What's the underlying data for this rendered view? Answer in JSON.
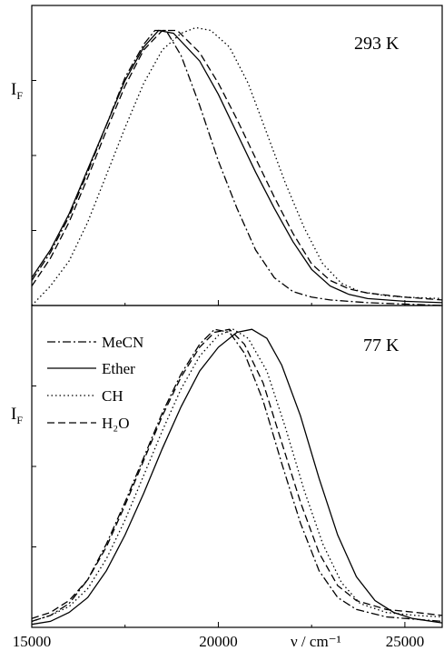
{
  "chart_data": [
    {
      "type": "line",
      "panel": "top",
      "annotation": "293 K",
      "ylabel": {
        "main": "I",
        "sub": "F"
      },
      "xlim": [
        15000,
        26000
      ],
      "ylim": [
        0,
        1.08
      ],
      "grid": false,
      "series": [
        {
          "name": "MeCN",
          "style": "dashdot",
          "points": [
            [
              15000,
              0.09
            ],
            [
              15500,
              0.19
            ],
            [
              16000,
              0.32
            ],
            [
              16500,
              0.48
            ],
            [
              17000,
              0.65
            ],
            [
              17500,
              0.82
            ],
            [
              18000,
              0.94
            ],
            [
              18300,
              0.99
            ],
            [
              18600,
              0.99
            ],
            [
              19000,
              0.9
            ],
            [
              19500,
              0.72
            ],
            [
              20000,
              0.52
            ],
            [
              20500,
              0.35
            ],
            [
              21000,
              0.2
            ],
            [
              21500,
              0.1
            ],
            [
              22000,
              0.05
            ],
            [
              22500,
              0.03
            ],
            [
              23000,
              0.02
            ],
            [
              24000,
              0.01
            ],
            [
              26000,
              0.0
            ]
          ]
        },
        {
          "name": "Ether",
          "style": "solid",
          "points": [
            [
              15000,
              0.1
            ],
            [
              15500,
              0.2
            ],
            [
              16000,
              0.33
            ],
            [
              16500,
              0.49
            ],
            [
              17000,
              0.65
            ],
            [
              17500,
              0.81
            ],
            [
              18000,
              0.93
            ],
            [
              18400,
              0.99
            ],
            [
              18800,
              0.98
            ],
            [
              19500,
              0.88
            ],
            [
              20000,
              0.76
            ],
            [
              20500,
              0.62
            ],
            [
              21000,
              0.48
            ],
            [
              21500,
              0.35
            ],
            [
              22000,
              0.23
            ],
            [
              22500,
              0.13
            ],
            [
              23000,
              0.07
            ],
            [
              23500,
              0.04
            ],
            [
              24000,
              0.025
            ],
            [
              25000,
              0.015
            ],
            [
              26000,
              0.01
            ]
          ]
        },
        {
          "name": "CH",
          "style": "dotted",
          "points": [
            [
              15000,
              0.0
            ],
            [
              15500,
              0.07
            ],
            [
              16000,
              0.16
            ],
            [
              16500,
              0.3
            ],
            [
              17000,
              0.47
            ],
            [
              17500,
              0.64
            ],
            [
              18000,
              0.8
            ],
            [
              18500,
              0.92
            ],
            [
              19000,
              0.98
            ],
            [
              19400,
              1.0
            ],
            [
              19800,
              0.99
            ],
            [
              20300,
              0.93
            ],
            [
              20800,
              0.8
            ],
            [
              21300,
              0.62
            ],
            [
              21800,
              0.44
            ],
            [
              22300,
              0.28
            ],
            [
              22800,
              0.15
            ],
            [
              23300,
              0.08
            ],
            [
              23800,
              0.05
            ],
            [
              24500,
              0.035
            ],
            [
              25000,
              0.03
            ],
            [
              26000,
              0.025
            ]
          ]
        },
        {
          "name": "H₂O",
          "style": "dashed",
          "points": [
            [
              15000,
              0.07
            ],
            [
              15500,
              0.17
            ],
            [
              16000,
              0.3
            ],
            [
              16500,
              0.46
            ],
            [
              17000,
              0.63
            ],
            [
              17500,
              0.79
            ],
            [
              18000,
              0.92
            ],
            [
              18500,
              0.99
            ],
            [
              18900,
              0.99
            ],
            [
              19500,
              0.91
            ],
            [
              20000,
              0.8
            ],
            [
              20500,
              0.67
            ],
            [
              21000,
              0.53
            ],
            [
              21500,
              0.39
            ],
            [
              22000,
              0.26
            ],
            [
              22500,
              0.15
            ],
            [
              23000,
              0.09
            ],
            [
              23500,
              0.06
            ],
            [
              24000,
              0.045
            ],
            [
              25000,
              0.03
            ],
            [
              26000,
              0.02
            ]
          ]
        }
      ]
    },
    {
      "type": "line",
      "panel": "bottom",
      "annotation": "77 K",
      "ylabel": {
        "main": "I",
        "sub": "F"
      },
      "xlabel": "ν / cm⁻¹",
      "xticks": [
        15000,
        20000,
        25000
      ],
      "xlim": [
        15000,
        26000
      ],
      "ylim": [
        0,
        1.08
      ],
      "grid": false,
      "legend": "top-left",
      "series": [
        {
          "name": "MeCN",
          "style": "dashdot",
          "points": [
            [
              15000,
              0.02
            ],
            [
              15500,
              0.04
            ],
            [
              16000,
              0.08
            ],
            [
              16500,
              0.16
            ],
            [
              17000,
              0.28
            ],
            [
              17500,
              0.42
            ],
            [
              18000,
              0.57
            ],
            [
              18500,
              0.72
            ],
            [
              19000,
              0.85
            ],
            [
              19500,
              0.95
            ],
            [
              19900,
              1.0
            ],
            [
              20300,
              0.99
            ],
            [
              20700,
              0.92
            ],
            [
              21200,
              0.76
            ],
            [
              21700,
              0.55
            ],
            [
              22200,
              0.35
            ],
            [
              22700,
              0.19
            ],
            [
              23200,
              0.1
            ],
            [
              23700,
              0.06
            ],
            [
              24500,
              0.035
            ],
            [
              26000,
              0.02
            ]
          ]
        },
        {
          "name": "Ether",
          "style": "solid",
          "points": [
            [
              15000,
              0.01
            ],
            [
              15500,
              0.02
            ],
            [
              16000,
              0.05
            ],
            [
              16500,
              0.1
            ],
            [
              17000,
              0.19
            ],
            [
              17500,
              0.31
            ],
            [
              18000,
              0.45
            ],
            [
              18500,
              0.6
            ],
            [
              19000,
              0.74
            ],
            [
              19500,
              0.86
            ],
            [
              20000,
              0.94
            ],
            [
              20500,
              0.99
            ],
            [
              20900,
              1.0
            ],
            [
              21300,
              0.97
            ],
            [
              21700,
              0.88
            ],
            [
              22200,
              0.71
            ],
            [
              22700,
              0.5
            ],
            [
              23200,
              0.31
            ],
            [
              23700,
              0.17
            ],
            [
              24200,
              0.09
            ],
            [
              24700,
              0.05
            ],
            [
              25200,
              0.03
            ],
            [
              26000,
              0.015
            ]
          ]
        },
        {
          "name": "CH",
          "style": "dotted",
          "points": [
            [
              15000,
              0.02
            ],
            [
              15500,
              0.04
            ],
            [
              16000,
              0.07
            ],
            [
              16500,
              0.13
            ],
            [
              17000,
              0.23
            ],
            [
              17500,
              0.36
            ],
            [
              18000,
              0.51
            ],
            [
              18500,
              0.66
            ],
            [
              19000,
              0.8
            ],
            [
              19500,
              0.91
            ],
            [
              20000,
              0.98
            ],
            [
              20400,
              1.0
            ],
            [
              20800,
              0.97
            ],
            [
              21300,
              0.86
            ],
            [
              21800,
              0.67
            ],
            [
              22300,
              0.46
            ],
            [
              22800,
              0.28
            ],
            [
              23300,
              0.15
            ],
            [
              23800,
              0.08
            ],
            [
              24500,
              0.05
            ],
            [
              25300,
              0.04
            ],
            [
              26000,
              0.035
            ]
          ]
        },
        {
          "name": "H₂O",
          "style": "dashed",
          "points": [
            [
              15000,
              0.03
            ],
            [
              15500,
              0.05
            ],
            [
              16000,
              0.09
            ],
            [
              16500,
              0.16
            ],
            [
              17000,
              0.27
            ],
            [
              17500,
              0.41
            ],
            [
              18000,
              0.56
            ],
            [
              18500,
              0.71
            ],
            [
              19000,
              0.84
            ],
            [
              19500,
              0.94
            ],
            [
              19900,
              0.99
            ],
            [
              20300,
              1.0
            ],
            [
              20700,
              0.95
            ],
            [
              21200,
              0.82
            ],
            [
              21700,
              0.62
            ],
            [
              22200,
              0.42
            ],
            [
              22700,
              0.25
            ],
            [
              23200,
              0.14
            ],
            [
              23700,
              0.09
            ],
            [
              24500,
              0.06
            ],
            [
              25300,
              0.05
            ],
            [
              26000,
              0.04
            ]
          ]
        }
      ]
    }
  ]
}
